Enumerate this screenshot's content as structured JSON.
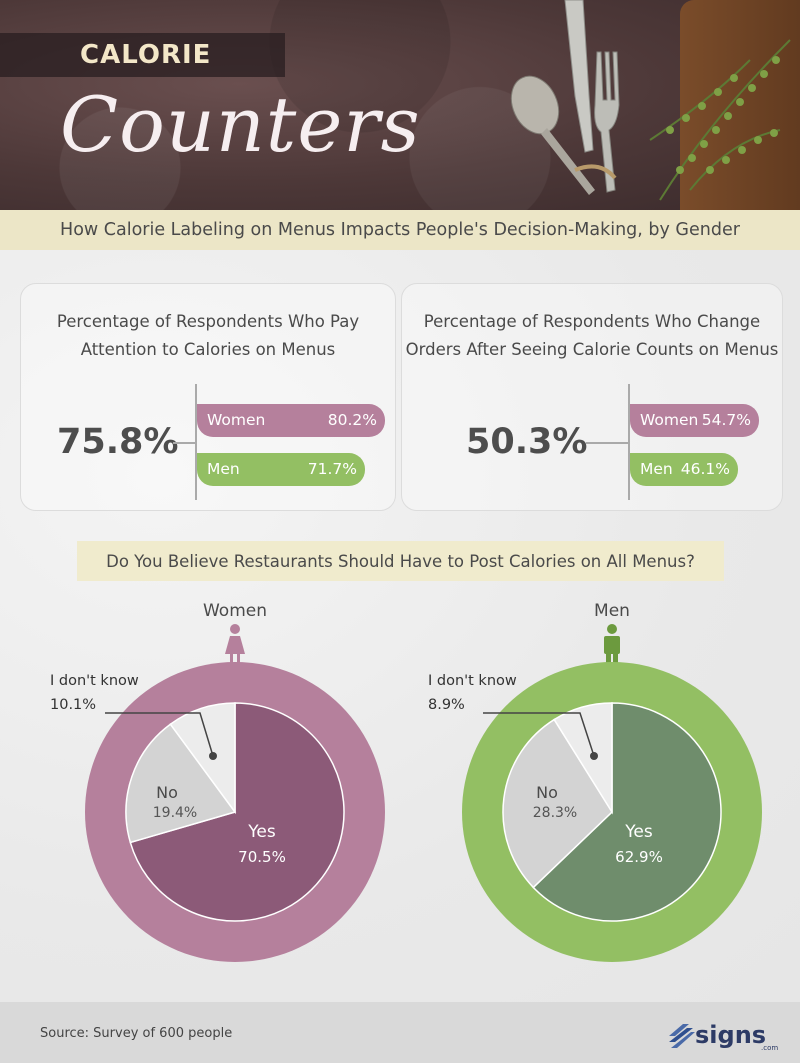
{
  "header": {
    "kicker": "CALORIE",
    "title": "Counters",
    "subtitle": "How Calorie Labeling on Menus Impacts People's Decision-Making, by Gender"
  },
  "cards": [
    {
      "title_line1": "Percentage of Respondents Who Pay",
      "title_line2": "Attention to Calories on Menus",
      "overall": "75.8%",
      "women_label": "Women",
      "women_value": "80.2%",
      "men_label": "Men",
      "men_value": "71.7%"
    },
    {
      "title_line1": "Percentage of Respondents Who Change",
      "title_line2": "Orders After Seeing Calorie Counts on Menus",
      "overall": "50.3%",
      "women_label": "Women",
      "women_value": "54.7%",
      "men_label": "Men",
      "men_value": "46.1%"
    }
  ],
  "question": "Do You Believe Restaurants Should Have to Post Calories on All Menus?",
  "colors": {
    "women": "#b5809c",
    "women_dark": "#8c5a78",
    "men": "#93bf63",
    "men_dark": "#6f8d6c",
    "no": "#d3d3d3",
    "dontknow": "#ececec",
    "icon_women": "#b5809c",
    "icon_men": "#6c9a3e"
  },
  "chart_data": [
    {
      "type": "bar",
      "title": "Percentage of Respondents Who Pay Attention to Calories on Menus",
      "categories": [
        "Women",
        "Men"
      ],
      "values": [
        80.2,
        71.7
      ],
      "overall": 75.8,
      "unit": "%"
    },
    {
      "type": "bar",
      "title": "Percentage of Respondents Who Change Orders After Seeing Calorie Counts on Menus",
      "categories": [
        "Women",
        "Men"
      ],
      "values": [
        54.7,
        46.1
      ],
      "overall": 50.3,
      "unit": "%"
    },
    {
      "type": "pie",
      "title": "Women",
      "icon": "woman-icon",
      "slices": [
        {
          "label": "Yes",
          "value": 70.5,
          "text": "70.5%"
        },
        {
          "label": "No",
          "value": 19.4,
          "text": "19.4%"
        },
        {
          "label": "I don't know",
          "value": 10.1,
          "text": "10.1%"
        }
      ]
    },
    {
      "type": "pie",
      "title": "Men",
      "icon": "man-icon",
      "slices": [
        {
          "label": "Yes",
          "value": 62.9,
          "text": "62.9%"
        },
        {
          "label": "No",
          "value": 28.3,
          "text": "28.3%"
        },
        {
          "label": "I don't know",
          "value": 8.9,
          "text": "8.9%"
        }
      ]
    }
  ],
  "footer": {
    "source": "Source: Survey of 600 people",
    "logo_text": "signs",
    "logo_sub": ".com"
  }
}
